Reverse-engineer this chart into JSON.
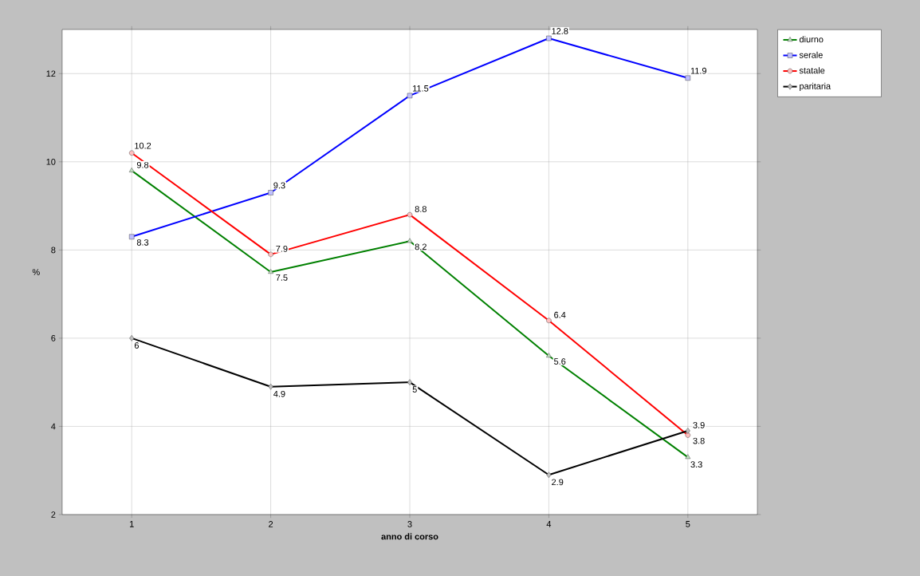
{
  "chart_data": {
    "type": "line",
    "xlabel": "anno di corso",
    "ylabel": "%",
    "categories": [
      "1",
      "2",
      "3",
      "4",
      "5"
    ],
    "series": [
      {
        "name": "diurno",
        "color": "#008000",
        "marker": "triangle",
        "values": [
          9.8,
          7.5,
          8.2,
          5.6,
          3.3
        ]
      },
      {
        "name": "serale",
        "color": "#0000ff",
        "marker": "square",
        "values": [
          8.3,
          9.3,
          11.5,
          12.8,
          11.9
        ]
      },
      {
        "name": "statale",
        "color": "#ff0000",
        "marker": "circle",
        "values": [
          10.2,
          7.9,
          8.8,
          6.4,
          3.8
        ]
      },
      {
        "name": "paritaria",
        "color": "#000000",
        "marker": "diamond",
        "values": [
          6,
          4.9,
          5,
          2.9,
          3.9
        ]
      }
    ],
    "ylim": [
      2,
      13
    ],
    "yticks": [
      2,
      4,
      6,
      8,
      10,
      12
    ],
    "grid": true,
    "legend": "top right",
    "data_labels": true,
    "line_style": "solid"
  }
}
